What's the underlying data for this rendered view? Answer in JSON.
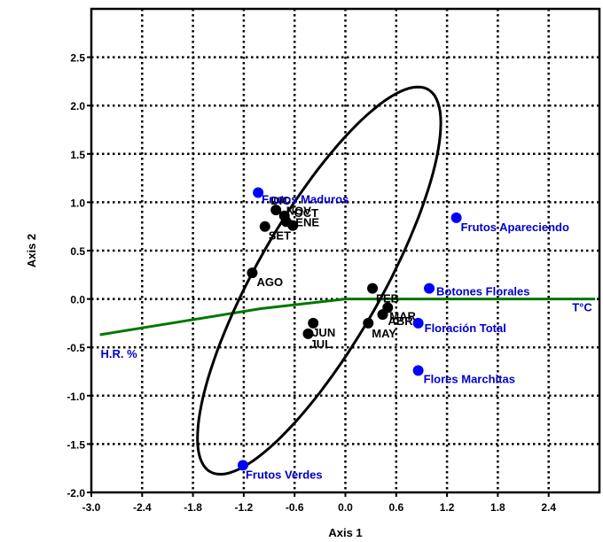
{
  "chart_data": {
    "type": "scatter",
    "xlabel": "Axis 1",
    "ylabel": "Axis 2",
    "xlim": [
      -3.0,
      3.0
    ],
    "ylim": [
      -2.0,
      3.0
    ],
    "x_ticks": [
      -3.0,
      -2.4,
      -1.8,
      -1.2,
      -0.6,
      0.0,
      0.6,
      1.2,
      1.8,
      2.4
    ],
    "y_ticks": [
      -2.0,
      -1.5,
      -1.0,
      -0.5,
      0.0,
      0.5,
      1.0,
      1.5,
      2.0,
      2.5
    ],
    "x_tick_labels": [
      "-3.0",
      "-2.4",
      "-1.8",
      "-1.2",
      "-0.6",
      "0.0",
      "0.6",
      "1.2",
      "1.8",
      "2.4"
    ],
    "y_tick_labels": [
      "-2.0",
      "-1.5",
      "-1.0",
      "-0.5",
      "0.0",
      "0.5",
      "1.0",
      "1.5",
      "2.0",
      "2.5"
    ],
    "grid": true,
    "grid_style": "dotted",
    "series": [
      {
        "color": "#000000",
        "points": [
          {
            "label": "DIC",
            "x": -0.82,
            "y": 0.92
          },
          {
            "label": "NOV",
            "x": -0.72,
            "y": 0.86
          },
          {
            "label": "OCT",
            "x": -0.7,
            "y": 0.8
          },
          {
            "label": "ENE",
            "x": -0.62,
            "y": 0.76
          },
          {
            "label": "SET",
            "x": -0.95,
            "y": 0.75
          },
          {
            "label": "AGO",
            "x": -1.1,
            "y": 0.27
          },
          {
            "label": "FEB",
            "x": 0.32,
            "y": 0.11
          },
          {
            "label": "MAR",
            "x": 0.5,
            "y": -0.09
          },
          {
            "label": "ABR",
            "x": 0.44,
            "y": -0.16
          },
          {
            "label": "MAY",
            "x": 0.27,
            "y": -0.25
          },
          {
            "label": "JUN",
            "x": -0.38,
            "y": -0.25
          },
          {
            "label": "JUL",
            "x": -0.44,
            "y": -0.36
          }
        ]
      },
      {
        "color": "#0000ff",
        "points": [
          {
            "label": "Frutos Maduros",
            "x": -1.03,
            "y": 1.1
          },
          {
            "label": "Frutos Apareciendo",
            "x": 1.31,
            "y": 0.84
          },
          {
            "label": "Botones Florales",
            "x": 0.99,
            "y": 0.11
          },
          {
            "label": "Floración Total",
            "x": 0.86,
            "y": -0.25
          },
          {
            "label": "Flores Marchitas",
            "x": 0.86,
            "y": -0.74
          },
          {
            "label": "Frutos Verdes",
            "x": -1.21,
            "y": -1.72
          }
        ]
      }
    ],
    "vectors": [
      {
        "label": "H.R. %",
        "color": "#007700",
        "points": [
          [
            -2.9,
            -0.37
          ],
          [
            -1.0,
            -0.1
          ],
          [
            0.0,
            0.0
          ]
        ]
      },
      {
        "label": "T°C",
        "color": "#007700",
        "points": [
          [
            0.0,
            0.0
          ],
          [
            1.5,
            0.0
          ],
          [
            2.95,
            0.0
          ]
        ]
      }
    ],
    "ellipse": {
      "center": [
        -0.31,
        0.19
      ],
      "semi_major": 2.36,
      "semi_minor": 0.71,
      "angle_deg": -56.3,
      "color": "#000000"
    }
  }
}
